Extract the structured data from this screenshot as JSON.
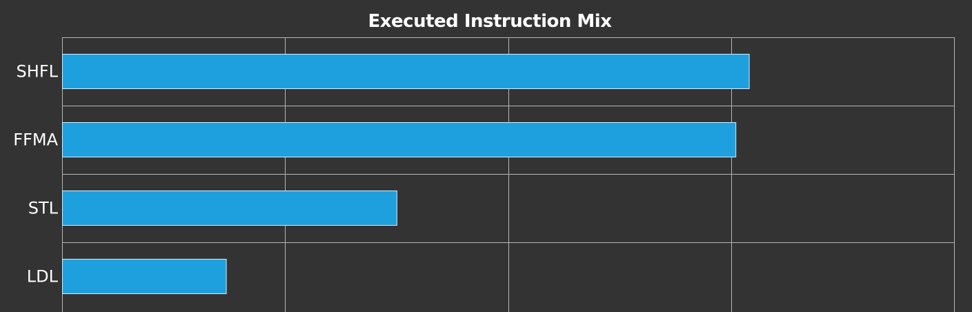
{
  "chart_data": {
    "type": "bar",
    "orientation": "horizontal",
    "title": "Executed Instruction Mix",
    "categories": [
      "SHFL",
      "FFMA",
      "STL",
      "LDL"
    ],
    "values": [
      3.08,
      3.02,
      1.5,
      0.735
    ],
    "xlim": [
      0,
      4
    ],
    "x_gridlines": [
      0,
      1,
      2,
      3,
      4
    ],
    "x_tick_labels_visible": false,
    "grid": true,
    "legend": "none",
    "bar_color": "#1ea0de",
    "background_color": "#333333",
    "grid_color": "#b8b8b8"
  }
}
